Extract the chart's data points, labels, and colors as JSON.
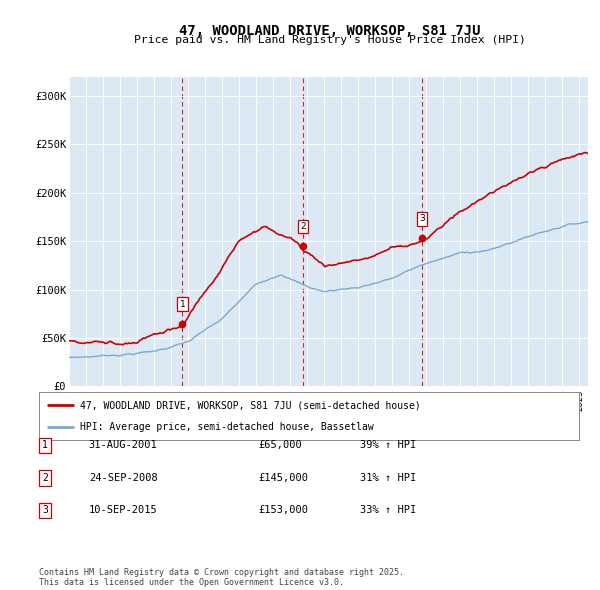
{
  "title": "47, WOODLAND DRIVE, WORKSOP, S81 7JU",
  "subtitle": "Price paid vs. HM Land Registry's House Price Index (HPI)",
  "background_color": "#dce9f5",
  "plot_bg_color": "#dce9f5",
  "ylim": [
    0,
    320000
  ],
  "yticks": [
    0,
    50000,
    100000,
    150000,
    200000,
    250000,
    300000
  ],
  "ytick_labels": [
    "£0",
    "£50K",
    "£100K",
    "£150K",
    "£200K",
    "£250K",
    "£300K"
  ],
  "sale_prices": [
    65000,
    145000,
    153000
  ],
  "sale_pct": [
    "39%",
    "31%",
    "33%"
  ],
  "sale_date_labels": [
    "31-AUG-2001",
    "24-SEP-2008",
    "10-SEP-2015"
  ],
  "red_line_color": "#cc0000",
  "blue_line_color": "#7aabcf",
  "legend_red_label": "47, WOODLAND DRIVE, WORKSOP, S81 7JU (semi-detached house)",
  "legend_blue_label": "HPI: Average price, semi-detached house, Bassetlaw",
  "footer_text": "Contains HM Land Registry data © Crown copyright and database right 2025.\nThis data is licensed under the Open Government Licence v3.0.",
  "xstart": 1995.0,
  "xend": 2025.5
}
